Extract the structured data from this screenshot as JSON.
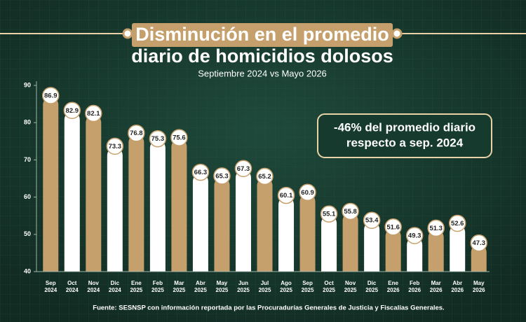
{
  "chart_data": {
    "type": "bar",
    "title": [
      "Disminución en el promedio",
      "diario de homicidios dolosos"
    ],
    "subtitle": "Septiembre 2024 vs Mayo 2026",
    "annotation": [
      "-46% del promedio diario",
      "respecto a sep. 2024"
    ],
    "source": "Fuente: SESNSP con información reportada por las Procuradurías Generales de Justicia y Fiscalías Generales.",
    "categories": [
      "Sep 2024",
      "Oct 2024",
      "Nov 2024",
      "Dic 2024",
      "Ene 2025",
      "Feb 2025",
      "Mar 2025",
      "Abr 2025",
      "May 2025",
      "Jun 2025",
      "Jul 2025",
      "Ago 2025",
      "Sep 2025",
      "Oct 2025",
      "Nov 2025",
      "Dic 2025",
      "Ene 2026",
      "Feb 2026",
      "Mar 2026",
      "Abr 2026",
      "May 2026"
    ],
    "values": [
      86.9,
      82.9,
      82.1,
      73.3,
      76.8,
      75.3,
      75.6,
      66.3,
      65.3,
      67.3,
      65.2,
      60.1,
      60.9,
      55.1,
      55.8,
      53.4,
      51.6,
      49.3,
      51.3,
      52.6,
      47.3
    ],
    "colors": [
      "#c6a06c",
      "#ffffff"
    ],
    "ylim": [
      40,
      90
    ],
    "yticks": [
      40,
      50,
      60,
      70,
      80,
      90
    ]
  }
}
